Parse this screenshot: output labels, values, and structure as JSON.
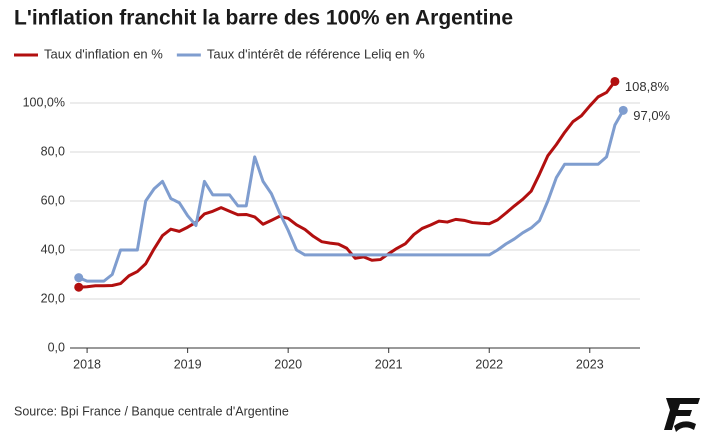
{
  "chart_data": {
    "type": "line",
    "title": "L'inflation franchit la barre des 100% en Argentine",
    "source": "Source: Bpi France / Banque centrale d'Argentine",
    "x": [
      2017.917,
      2018.0,
      2018.083,
      2018.167,
      2018.25,
      2018.333,
      2018.417,
      2018.5,
      2018.583,
      2018.667,
      2018.75,
      2018.833,
      2018.917,
      2019.0,
      2019.083,
      2019.167,
      2019.25,
      2019.333,
      2019.417,
      2019.5,
      2019.583,
      2019.667,
      2019.75,
      2019.833,
      2019.917,
      2020.0,
      2020.083,
      2020.167,
      2020.25,
      2020.333,
      2020.417,
      2020.5,
      2020.583,
      2020.667,
      2020.75,
      2020.833,
      2020.917,
      2021.0,
      2021.083,
      2021.167,
      2021.25,
      2021.333,
      2021.417,
      2021.5,
      2021.583,
      2021.667,
      2021.75,
      2021.833,
      2021.917,
      2022.0,
      2022.083,
      2022.167,
      2022.25,
      2022.333,
      2022.417,
      2022.5,
      2022.583,
      2022.667,
      2022.75,
      2022.833,
      2022.917,
      2023.0,
      2023.083,
      2023.167,
      2023.25,
      2023.333
    ],
    "series": [
      {
        "name": "Taux d'inflation en %",
        "color": "#b20f0f",
        "values": [
          24.8,
          25.0,
          25.4,
          25.4,
          25.5,
          26.3,
          29.5,
          31.2,
          34.4,
          40.5,
          45.9,
          48.5,
          47.6,
          49.3,
          51.3,
          54.7,
          55.8,
          57.3,
          55.8,
          54.4,
          54.5,
          53.5,
          50.5,
          52.1,
          53.8,
          52.9,
          50.3,
          48.4,
          45.6,
          43.4,
          42.8,
          42.4,
          40.7,
          36.6,
          37.2,
          35.8,
          36.1,
          38.5,
          40.7,
          42.6,
          46.3,
          48.8,
          50.2,
          51.8,
          51.4,
          52.5,
          52.1,
          51.2,
          50.9,
          50.7,
          52.3,
          55.1,
          58.0,
          60.7,
          64.0,
          71.0,
          78.5,
          83.0,
          88.0,
          92.4,
          94.8,
          98.8,
          102.5,
          104.3,
          108.8,
          null
        ],
        "value_labels": [
          null,
          null,
          null,
          null,
          null,
          null,
          null,
          null,
          null,
          null,
          null,
          null,
          null,
          null,
          null,
          null,
          null,
          null,
          null,
          null,
          null,
          null,
          null,
          null,
          null,
          null,
          null,
          null,
          null,
          null,
          null,
          null,
          null,
          null,
          null,
          null,
          null,
          null,
          null,
          null,
          null,
          null,
          null,
          null,
          null,
          null,
          null,
          null,
          null,
          null,
          null,
          null,
          null,
          null,
          null,
          null,
          null,
          null,
          null,
          null,
          null,
          null,
          null,
          null,
          "108,8%",
          null
        ]
      },
      {
        "name": "Taux d'intérêt de référence Leliq en %",
        "color": "#7f9dcf",
        "values": [
          28.7,
          27.3,
          27.3,
          27.3,
          30,
          40,
          40,
          40,
          60,
          65,
          68,
          61,
          59.3,
          54,
          50,
          68,
          62.5,
          62.5,
          62.5,
          58,
          58,
          78,
          68,
          63,
          55,
          48,
          40,
          38,
          38,
          38,
          38,
          38,
          38,
          38,
          38,
          38,
          38,
          38,
          38,
          38,
          38,
          38,
          38,
          38,
          38,
          38,
          38,
          38,
          38,
          38,
          40,
          42.5,
          44.5,
          47,
          49,
          52,
          60,
          69.5,
          75,
          75,
          75,
          75,
          75,
          78,
          91,
          97
        ],
        "value_labels": [
          null,
          null,
          null,
          null,
          null,
          null,
          null,
          null,
          null,
          null,
          null,
          null,
          null,
          null,
          null,
          null,
          null,
          null,
          null,
          null,
          null,
          null,
          null,
          null,
          null,
          null,
          null,
          null,
          null,
          null,
          null,
          null,
          null,
          null,
          null,
          null,
          null,
          null,
          null,
          null,
          null,
          null,
          null,
          null,
          null,
          null,
          null,
          null,
          null,
          null,
          null,
          null,
          null,
          null,
          null,
          null,
          null,
          null,
          null,
          null,
          null,
          null,
          null,
          null,
          null,
          "97,0%"
        ]
      }
    ],
    "xlim": [
      2017.83,
      2023.42
    ],
    "xticks": [
      2018,
      2019,
      2020,
      2021,
      2022,
      2023
    ],
    "ylim": [
      0,
      110
    ],
    "yticks": [
      {
        "value": 0,
        "label": "0,0"
      },
      {
        "value": 20,
        "label": "20,0"
      },
      {
        "value": 40,
        "label": "40,0"
      },
      {
        "value": 60,
        "label": "60,0"
      },
      {
        "value": 80,
        "label": "80,0"
      },
      {
        "value": 100,
        "label": "100,0%"
      }
    ],
    "grid": true
  }
}
